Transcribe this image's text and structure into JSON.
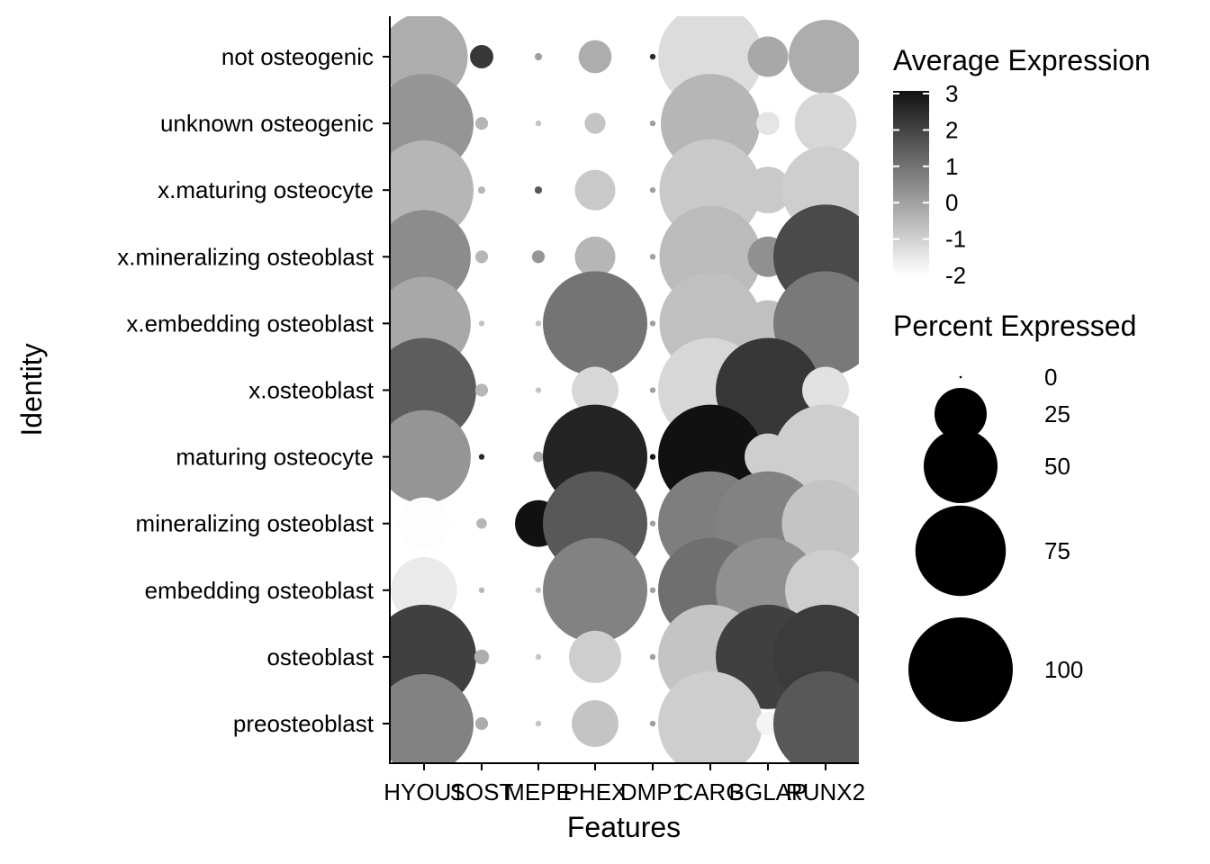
{
  "chart_data": {
    "type": "dot",
    "title": "",
    "xlabel": "Features",
    "ylabel": "Identity",
    "features": [
      "HYOU1",
      "SOST",
      "MEPE",
      "PHEX",
      "DMP1",
      "CARG",
      "BGLAP",
      "RUNX2"
    ],
    "identities": [
      "not osteogenic",
      "unknown osteogenic",
      "x.maturing osteocyte",
      "x.mineralizing osteoblast",
      "x.embedding osteoblast",
      "x.osteoblast",
      "maturing osteocyte",
      "mineralizing osteoblast",
      "embedding osteoblast",
      "osteoblast",
      "preosteoblast"
    ],
    "percent_expressed": [
      [
        70,
        5,
        0.5,
        10,
        0.3,
        100,
        15,
        50
      ],
      [
        90,
        1.5,
        0.3,
        4,
        0.3,
        90,
        5,
        35
      ],
      [
        90,
        0.5,
        0.5,
        15,
        0.3,
        95,
        20,
        70
      ],
      [
        80,
        1.5,
        1.5,
        15,
        0.3,
        95,
        15,
        100
      ],
      [
        80,
        0.3,
        0.3,
        100,
        0.3,
        95,
        20,
        100
      ],
      [
        100,
        1.5,
        0.3,
        20,
        0.3,
        100,
        100,
        20
      ],
      [
        80,
        0.3,
        1,
        100,
        0.3,
        100,
        20,
        100
      ],
      [
        25,
        1,
        20,
        100,
        0.3,
        100,
        100,
        70
      ],
      [
        40,
        0.3,
        0.3,
        100,
        0.3,
        100,
        100,
        60
      ],
      [
        100,
        2,
        0.3,
        25,
        0.3,
        100,
        100,
        100
      ],
      [
        90,
        1.5,
        0.3,
        20,
        0.3,
        100,
        5,
        100
      ]
    ],
    "average_expression": [
      [
        -0.3,
        2.2,
        0.0,
        -0.3,
        2.5,
        -1.3,
        -0.2,
        -0.3
      ],
      [
        0.2,
        -0.5,
        -0.8,
        -0.8,
        0.0,
        -0.5,
        -1.5,
        -1.2
      ],
      [
        -0.5,
        -0.5,
        1.5,
        -0.9,
        0.0,
        -0.9,
        -0.9,
        -1.0
      ],
      [
        0.4,
        -0.5,
        0.2,
        -0.5,
        0.0,
        -0.6,
        0.3,
        1.8
      ],
      [
        -0.2,
        -0.8,
        -0.8,
        0.9,
        0.0,
        -0.7,
        -0.7,
        0.8
      ],
      [
        1.4,
        -0.5,
        -0.8,
        -1.2,
        0.0,
        -1.2,
        2.2,
        -1.4
      ],
      [
        0.2,
        2.5,
        -0.3,
        2.6,
        2.9,
        3.0,
        -1.0,
        -1.0
      ],
      [
        -2.2,
        -0.5,
        3.0,
        1.5,
        0.0,
        0.7,
        0.6,
        -0.8
      ],
      [
        -1.6,
        -0.5,
        -0.8,
        0.6,
        0.0,
        1.0,
        0.3,
        -1.0
      ],
      [
        2.0,
        -0.3,
        -0.8,
        -1.0,
        0.0,
        -0.8,
        2.0,
        2.1
      ],
      [
        0.6,
        -0.3,
        -0.8,
        -0.8,
        0.0,
        -1.0,
        -1.8,
        1.5
      ]
    ],
    "color_scale": {
      "low": "#fdfdfd",
      "high": "#111111",
      "min": -2,
      "max": 3
    },
    "legend_color": {
      "title": "Average Expression",
      "ticks": [
        "3",
        "2",
        "1",
        "0",
        "-1",
        "-2"
      ]
    },
    "legend_size": {
      "title": "Percent Expressed",
      "entries": [
        "0",
        "25",
        "50",
        "75",
        "100"
      ]
    }
  }
}
